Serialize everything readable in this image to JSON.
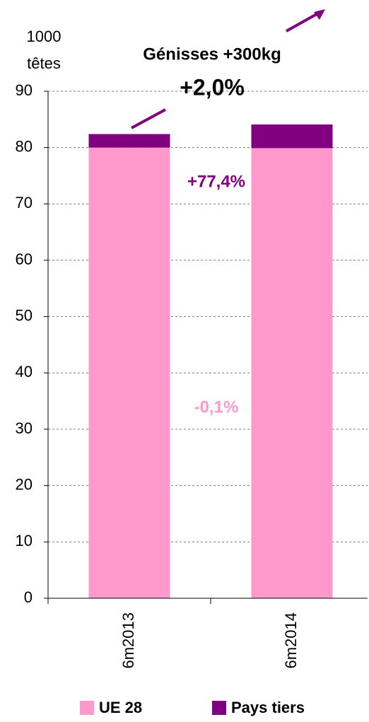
{
  "chart_data": {
    "type": "stacked_bar",
    "title": "Génisses +300kg",
    "y_label": [
      "1000",
      "têtes"
    ],
    "annotations": [
      {
        "text": "+2,0%",
        "color": "#000000"
      },
      {
        "text": "+77,4%",
        "color": "#800080"
      },
      {
        "text": "-0,1%",
        "color": "#ff99cc"
      }
    ],
    "categories": [
      "6m2013",
      "6m2014"
    ],
    "series": [
      {
        "name": "UE 28",
        "color": "#ff99cc",
        "values": [
          80.0,
          79.9
        ]
      },
      {
        "name": "Pays tiers",
        "color": "#800080",
        "values": [
          2.4,
          4.2
        ]
      }
    ],
    "ylim": [
      0,
      90
    ],
    "yticks": [
      0,
      10,
      20,
      30,
      40,
      50,
      60,
      70,
      80,
      90
    ],
    "grid": true
  }
}
